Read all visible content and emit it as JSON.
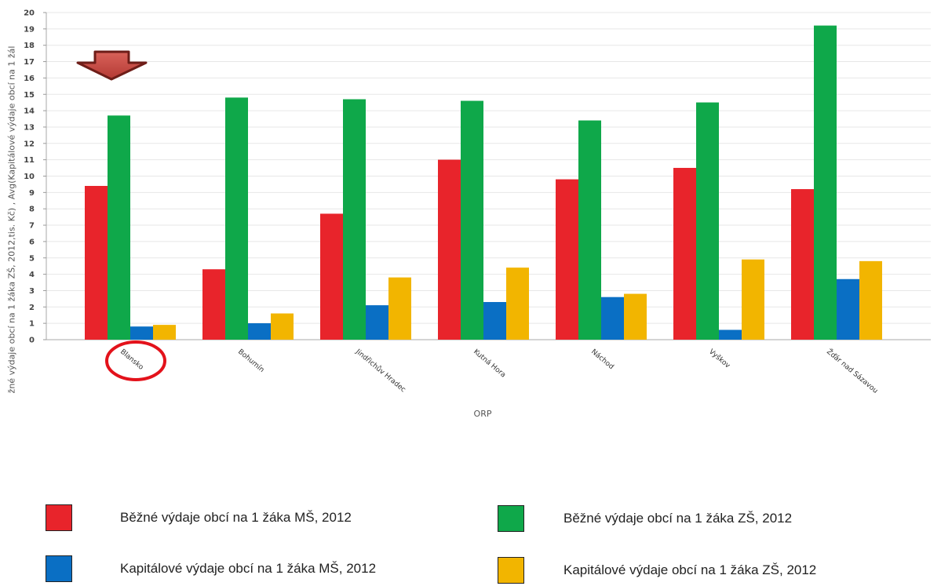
{
  "chart_data": {
    "type": "bar",
    "ylabel": "žné výdaje obcí na 1 žáka ZŠ, 2012,tis. Kč) , Avg(Kapitálové výdaje obcí na 1 žál",
    "xlabel": "ORP",
    "ylim": [
      0,
      20
    ],
    "yticks": [
      "0",
      "1",
      "2",
      "3",
      "4",
      "5",
      "6",
      "7",
      "8",
      "9",
      "10",
      "11",
      "12",
      "13",
      "14",
      "15",
      "16",
      "17",
      "18",
      "19",
      "20"
    ],
    "grid": true,
    "highlight_category": "Blansko",
    "categories": [
      "Blansko",
      "Bohumín",
      "Jindřichův Hradec",
      "Kutná Hora",
      "Náchod",
      "Vyškov",
      "Žďár nad Sázavou"
    ],
    "series": [
      {
        "name": "Běžné výdaje obcí na 1 žáka MŠ, 2012",
        "color": "#e8242b",
        "values": [
          9.4,
          4.3,
          7.7,
          11.0,
          9.8,
          10.5,
          9.2
        ]
      },
      {
        "name": "Běžné výdaje obcí na 1 žáka ZŠ, 2012",
        "color": "#0fa84a",
        "values": [
          13.7,
          14.8,
          14.7,
          14.6,
          13.4,
          14.5,
          19.2
        ]
      },
      {
        "name": "Kapitálové výdaje obcí na 1 žáka MŠ, 2012",
        "color": "#0a6fc4",
        "values": [
          0.8,
          1.0,
          2.1,
          2.3,
          2.6,
          0.6,
          3.7
        ]
      },
      {
        "name": "Kapitálové výdaje obcí na 1 žáka ZŠ, 2012",
        "color": "#f2b500",
        "values": [
          0.9,
          1.6,
          3.8,
          4.4,
          2.8,
          4.9,
          4.8
        ]
      }
    ],
    "legend_position": "bottom"
  }
}
